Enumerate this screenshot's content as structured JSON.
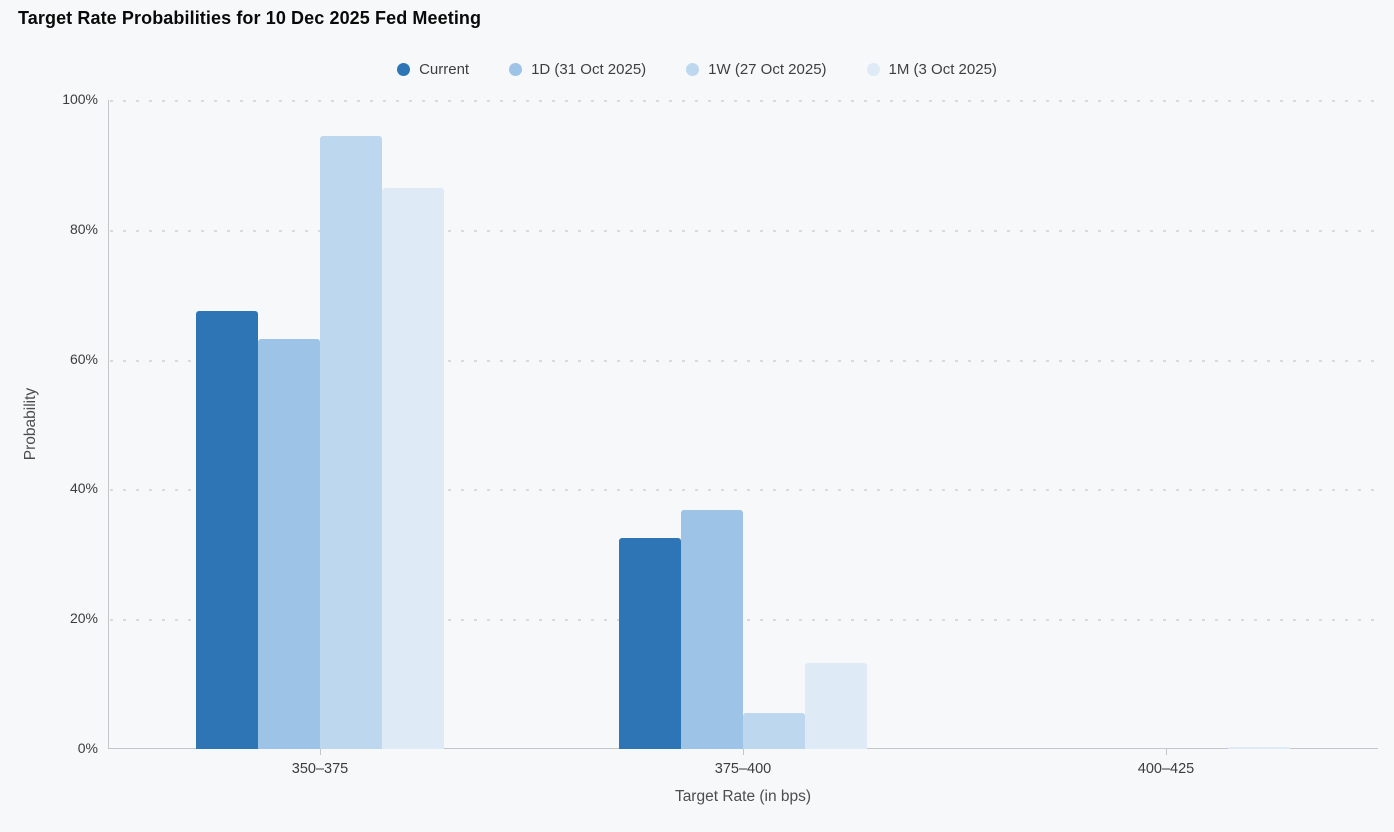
{
  "chart_data": {
    "type": "bar",
    "title": "Target Rate Probabilities for 10 Dec 2025 Fed Meeting",
    "categories": [
      "350–375",
      "375–400",
      "400–425"
    ],
    "series": [
      {
        "name": "Current",
        "color": "#2E75B6",
        "values": [
          67.5,
          32.5,
          0
        ]
      },
      {
        "name": "1D (31 Oct 2025)",
        "color": "#9DC3E6",
        "values": [
          63.1,
          36.9,
          0
        ]
      },
      {
        "name": "1W (27 Oct 2025)",
        "color": "#BDD7EE",
        "values": [
          94.4,
          5.6,
          0
        ]
      },
      {
        "name": "1M (3 Oct 2025)",
        "color": "#DEEBF7",
        "values": [
          86.4,
          13.3,
          0.3
        ]
      }
    ],
    "xlabel": "Target Rate (in bps)",
    "ylabel": "Probability",
    "ylim": [
      0,
      100
    ],
    "yticks": [
      "0%",
      "20%",
      "40%",
      "60%",
      "80%",
      "100%"
    ],
    "ytick_values": [
      0,
      20,
      40,
      60,
      80,
      100
    ],
    "grid": "horizontal-dotted",
    "legend_position": "top-center",
    "background_color": "#f7f8f9"
  }
}
